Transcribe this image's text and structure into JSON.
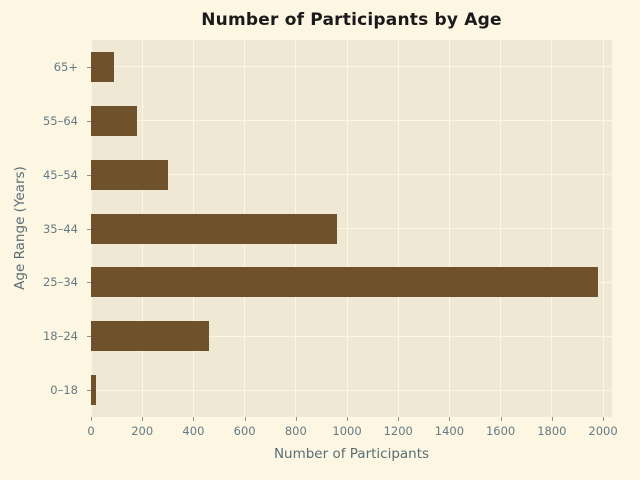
{
  "chart_data": {
    "type": "bar",
    "orientation": "horizontal",
    "title": "Number of Participants by Age",
    "xlabel": "Number of Participants",
    "ylabel": "Age Range (Years)",
    "categories_top_to_bottom": [
      "65+",
      "55–64",
      "45–54",
      "35–44",
      "25–34",
      "18–24",
      "0–18"
    ],
    "values": [
      90,
      180,
      300,
      960,
      1980,
      460,
      20
    ],
    "xticks": [
      0,
      200,
      400,
      600,
      800,
      1000,
      1200,
      1400,
      1600,
      1800,
      2000
    ],
    "xlim": [
      0,
      2035
    ],
    "grid": true,
    "legend": false,
    "colors": {
      "bar": "#6F522B",
      "figure_background": "#FDF6E3",
      "plot_background": "#EEE8D5",
      "gridline": "#FDF6E3",
      "tick_text": "#657B83",
      "axis_label_text": "#586E75",
      "title_text": "#1A1A1A",
      "tick_mark": "#839496"
    }
  }
}
